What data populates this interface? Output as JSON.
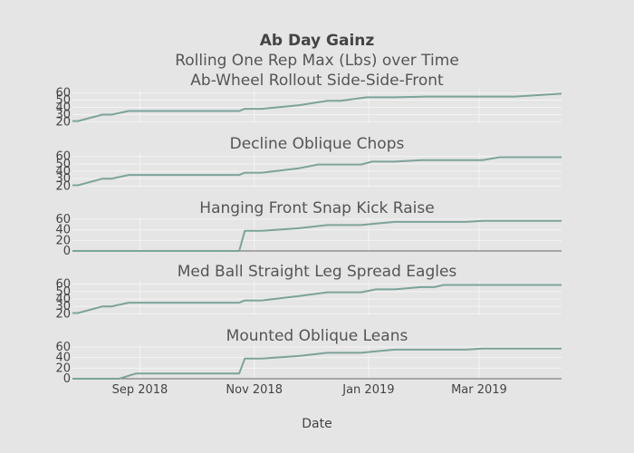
{
  "title": "Ab Day Gainz",
  "subtitle": "Rolling One Rep Max (Lbs) over Time",
  "xlabel": "Date",
  "x_ticks": [
    "Sep 2018",
    "Nov 2018",
    "Jan 2019",
    "Mar 2019"
  ],
  "colors": {
    "background": "#e5e5e5",
    "line": "#7ca39a",
    "grid": "#f4f4f4"
  },
  "chart_data": [
    {
      "type": "line",
      "title": "Ab-Wheel Rollout Side-Side-Front",
      "ylim": [
        18,
        62
      ],
      "yticks": [
        "20",
        "30",
        "40",
        "50",
        "60"
      ],
      "series": [
        {
          "x": [
            "2018-07-27",
            "2018-07-30",
            "2018-08-12",
            "2018-08-17",
            "2018-08-26",
            "2018-10-24",
            "2018-10-27",
            "2018-11-05",
            "2018-11-25",
            "2018-12-10",
            "2018-12-17",
            "2018-12-31",
            "2019-01-15",
            "2019-02-01",
            "2019-03-20",
            "2019-04-14"
          ],
          "y": [
            21,
            21,
            30,
            30,
            35,
            35,
            38,
            38,
            43,
            49,
            49,
            54,
            54,
            55,
            55,
            59
          ]
        }
      ]
    },
    {
      "type": "line",
      "title": "Decline Oblique Chops",
      "ylim": [
        18,
        62
      ],
      "yticks": [
        "20",
        "30",
        "40",
        "50",
        "60"
      ],
      "series": [
        {
          "x": [
            "2018-07-27",
            "2018-07-30",
            "2018-08-12",
            "2018-08-17",
            "2018-08-26",
            "2018-10-24",
            "2018-10-27",
            "2018-11-05",
            "2018-11-25",
            "2018-12-05",
            "2018-12-28",
            "2019-01-03",
            "2019-01-15",
            "2019-01-29",
            "2019-03-03",
            "2019-03-12",
            "2019-04-14"
          ],
          "y": [
            21,
            21,
            30,
            30,
            35,
            35,
            38,
            38,
            44,
            49,
            49,
            53,
            53,
            55,
            55,
            59,
            59
          ]
        }
      ]
    },
    {
      "type": "line",
      "title": "Hanging Front Snap Kick Raise",
      "ylim": [
        0,
        60
      ],
      "yticks": [
        "0",
        "20",
        "40",
        "60"
      ],
      "series": [
        {
          "x": [
            "2018-07-27",
            "2018-10-24",
            "2018-10-27",
            "2018-11-05",
            "2018-11-25",
            "2018-12-10",
            "2018-12-28",
            "2019-01-05",
            "2019-01-15",
            "2019-02-22",
            "2019-03-03",
            "2019-04-14"
          ],
          "y": [
            0,
            0,
            38,
            38,
            43,
            49,
            49,
            52,
            55,
            55,
            57,
            57
          ]
        }
      ]
    },
    {
      "type": "line",
      "title": "Med Ball Straight Leg Spread Eagles",
      "ylim": [
        18,
        62
      ],
      "yticks": [
        "20",
        "30",
        "40",
        "50",
        "60"
      ],
      "series": [
        {
          "x": [
            "2018-07-27",
            "2018-07-30",
            "2018-08-12",
            "2018-08-17",
            "2018-08-26",
            "2018-10-24",
            "2018-10-27",
            "2018-11-05",
            "2018-11-25",
            "2018-12-10",
            "2018-12-28",
            "2019-01-05",
            "2019-01-15",
            "2019-01-29",
            "2019-02-05",
            "2019-02-10",
            "2019-04-14"
          ],
          "y": [
            21,
            21,
            30,
            30,
            35,
            35,
            38,
            38,
            44,
            49,
            49,
            53,
            53,
            56,
            56,
            59,
            59
          ]
        }
      ]
    },
    {
      "type": "line",
      "title": "Mounted Oblique Leans",
      "ylim": [
        0,
        60
      ],
      "yticks": [
        "0",
        "20",
        "40",
        "60"
      ],
      "series": [
        {
          "x": [
            "2018-07-27",
            "2018-08-21",
            "2018-08-30",
            "2018-10-24",
            "2018-10-27",
            "2018-11-05",
            "2018-11-25",
            "2018-12-10",
            "2018-12-28",
            "2019-01-05",
            "2019-01-15",
            "2019-02-22",
            "2019-03-03",
            "2019-04-14"
          ],
          "y": [
            0,
            0,
            10,
            10,
            38,
            38,
            43,
            49,
            49,
            52,
            55,
            55,
            57,
            57
          ]
        }
      ]
    }
  ]
}
